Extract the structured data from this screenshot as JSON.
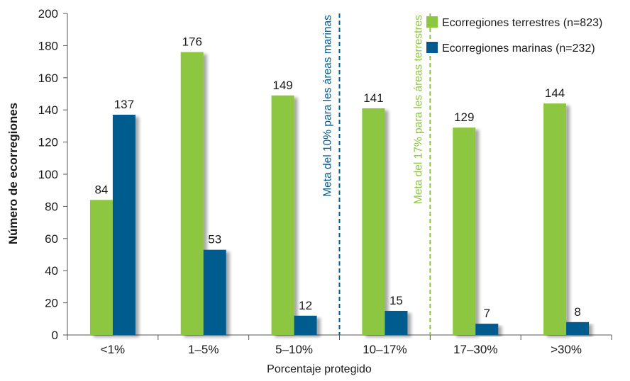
{
  "chart_data": {
    "type": "bar",
    "title": "",
    "xlabel": "Porcentaje protegido",
    "ylabel": "Número de ecorregiones",
    "ylim": [
      0,
      200
    ],
    "yticks": [
      0,
      20,
      40,
      60,
      80,
      100,
      120,
      140,
      160,
      180,
      200
    ],
    "categories": [
      "<1%",
      "1–5%",
      "5–10%",
      "10–17%",
      "17–30%",
      ">30%"
    ],
    "series": [
      {
        "name": "Ecorregiones terrestres (n=823)",
        "color": "#8dc63f",
        "values": [
          84,
          176,
          149,
          141,
          129,
          144
        ]
      },
      {
        "name": "Ecorregiones marinas (n=232)",
        "color": "#005b8f",
        "values": [
          137,
          53,
          12,
          15,
          7,
          8
        ]
      }
    ],
    "reference_lines": [
      {
        "label": "Meta del 10% para les áreas marinas",
        "between": [
          "5–10%",
          "10–17%"
        ],
        "color": "#005b8f",
        "style": "dashed"
      },
      {
        "label": "Meta del 17% para les áreas terrestres",
        "between": [
          "10–17%",
          "17–30%"
        ],
        "color": "#8dc63f",
        "style": "dashed"
      }
    ],
    "legend_position": "top-right",
    "grid": false
  }
}
